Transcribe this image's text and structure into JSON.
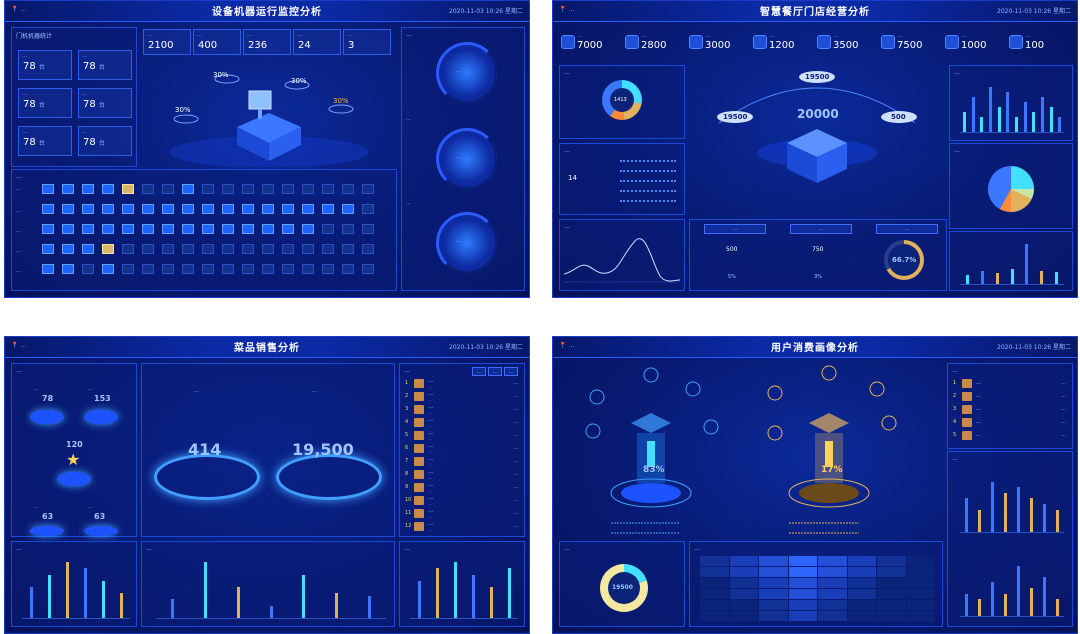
{
  "header": {
    "location": "📍 …",
    "datetime": "2020-11-03 10:26 星期二"
  },
  "d1": {
    "title": "设备机器运行监控分析",
    "left_title": "门机机器统计",
    "kvs": [
      {
        "label": "…",
        "value": "78",
        "unit": "台"
      },
      {
        "label": "…",
        "value": "78",
        "unit": "台"
      },
      {
        "label": "…",
        "value": "78",
        "unit": "台"
      },
      {
        "label": "…",
        "value": "78",
        "unit": "台"
      },
      {
        "label": "…",
        "value": "78",
        "unit": "台"
      },
      {
        "label": "…",
        "value": "78",
        "unit": "台"
      }
    ],
    "top_stats": [
      {
        "label": "…",
        "value": "2100"
      },
      {
        "label": "…",
        "value": "400"
      },
      {
        "label": "…",
        "value": "236"
      },
      {
        "label": "…",
        "value": "24"
      },
      {
        "label": "…",
        "value": "3"
      }
    ],
    "percents": [
      "30%",
      "30%",
      "30%",
      "30%"
    ],
    "grid_title": "…",
    "grid_rows": [
      "…",
      "…",
      "…",
      "…",
      "…"
    ],
    "right_labels": [
      "…",
      "…",
      "…"
    ],
    "gauge_values": [
      "…",
      "…",
      "…"
    ]
  },
  "d2": {
    "title": "智慧餐厅门店经营分析",
    "stats": [
      {
        "label": "…",
        "value": "7000"
      },
      {
        "label": "…",
        "value": "2800"
      },
      {
        "label": "…",
        "value": "3000"
      },
      {
        "label": "…",
        "value": "1200"
      },
      {
        "label": "…",
        "value": "3500"
      },
      {
        "label": "…",
        "value": "7500"
      },
      {
        "label": "…",
        "value": "1000"
      },
      {
        "label": "…",
        "value": "100"
      }
    ],
    "center_top": "19500",
    "center_main": "20000",
    "center_left": "19500",
    "center_right": "500",
    "donut_label": "1413",
    "left_mid_value": "14",
    "pct": "66.7%",
    "chips": [
      "…",
      "…",
      "…"
    ],
    "chip_values": [
      "500",
      "750"
    ],
    "chip_pcts": [
      "5%",
      "3%"
    ],
    "line_title": "…",
    "donut_title": "…",
    "mid_title": "…",
    "right_top_title": "…",
    "right_mid_title": "…"
  },
  "d3": {
    "title": "菜品销售分析",
    "left_title": "…",
    "circles": [
      {
        "label": "…",
        "value": "78"
      },
      {
        "label": "…",
        "value": "153"
      },
      {
        "label": "…",
        "value": "120"
      },
      {
        "label": "…",
        "value": "63"
      },
      {
        "label": "…",
        "value": "63"
      }
    ],
    "big_left_label": "…",
    "big_left": "414",
    "big_right_label": "…",
    "big_right": "19,500",
    "list_title": "…",
    "list_tabs": [
      "…",
      "…",
      "…"
    ],
    "list": [
      {
        "name": "…",
        "meta": "…",
        "val": "…"
      },
      {
        "name": "…",
        "meta": "…",
        "val": "…"
      },
      {
        "name": "…",
        "meta": "…",
        "val": "…"
      },
      {
        "name": "…",
        "meta": "…",
        "val": "…"
      },
      {
        "name": "…",
        "meta": "…",
        "val": "…"
      },
      {
        "name": "…",
        "meta": "…",
        "val": "…"
      },
      {
        "name": "…",
        "meta": "…",
        "val": "…"
      },
      {
        "name": "…",
        "meta": "…",
        "val": "…"
      },
      {
        "name": "…",
        "meta": "…",
        "val": "…"
      },
      {
        "name": "…",
        "meta": "…",
        "val": "…"
      },
      {
        "name": "…",
        "meta": "…",
        "val": "…"
      },
      {
        "name": "…",
        "meta": "…",
        "val": "…"
      }
    ],
    "bottom_titles": [
      "…",
      "…",
      "…"
    ]
  },
  "d4": {
    "title": "用户消费画像分析",
    "pct_left": "83%",
    "pct_right": "17%",
    "donut_center": "19500",
    "right_top_title": "…",
    "right_mid_title": "…",
    "bl_title": "…",
    "table_title": "…",
    "right_list": [
      {
        "name": "…",
        "val": "…"
      },
      {
        "name": "…",
        "val": "…"
      },
      {
        "name": "…",
        "val": "…"
      },
      {
        "name": "…",
        "val": "…"
      },
      {
        "name": "…",
        "val": "…"
      }
    ]
  },
  "colors": {
    "bg": "#081a72",
    "accent": "#2a5cff",
    "gold": "#e2b15c",
    "cyan": "#41e0ff"
  }
}
